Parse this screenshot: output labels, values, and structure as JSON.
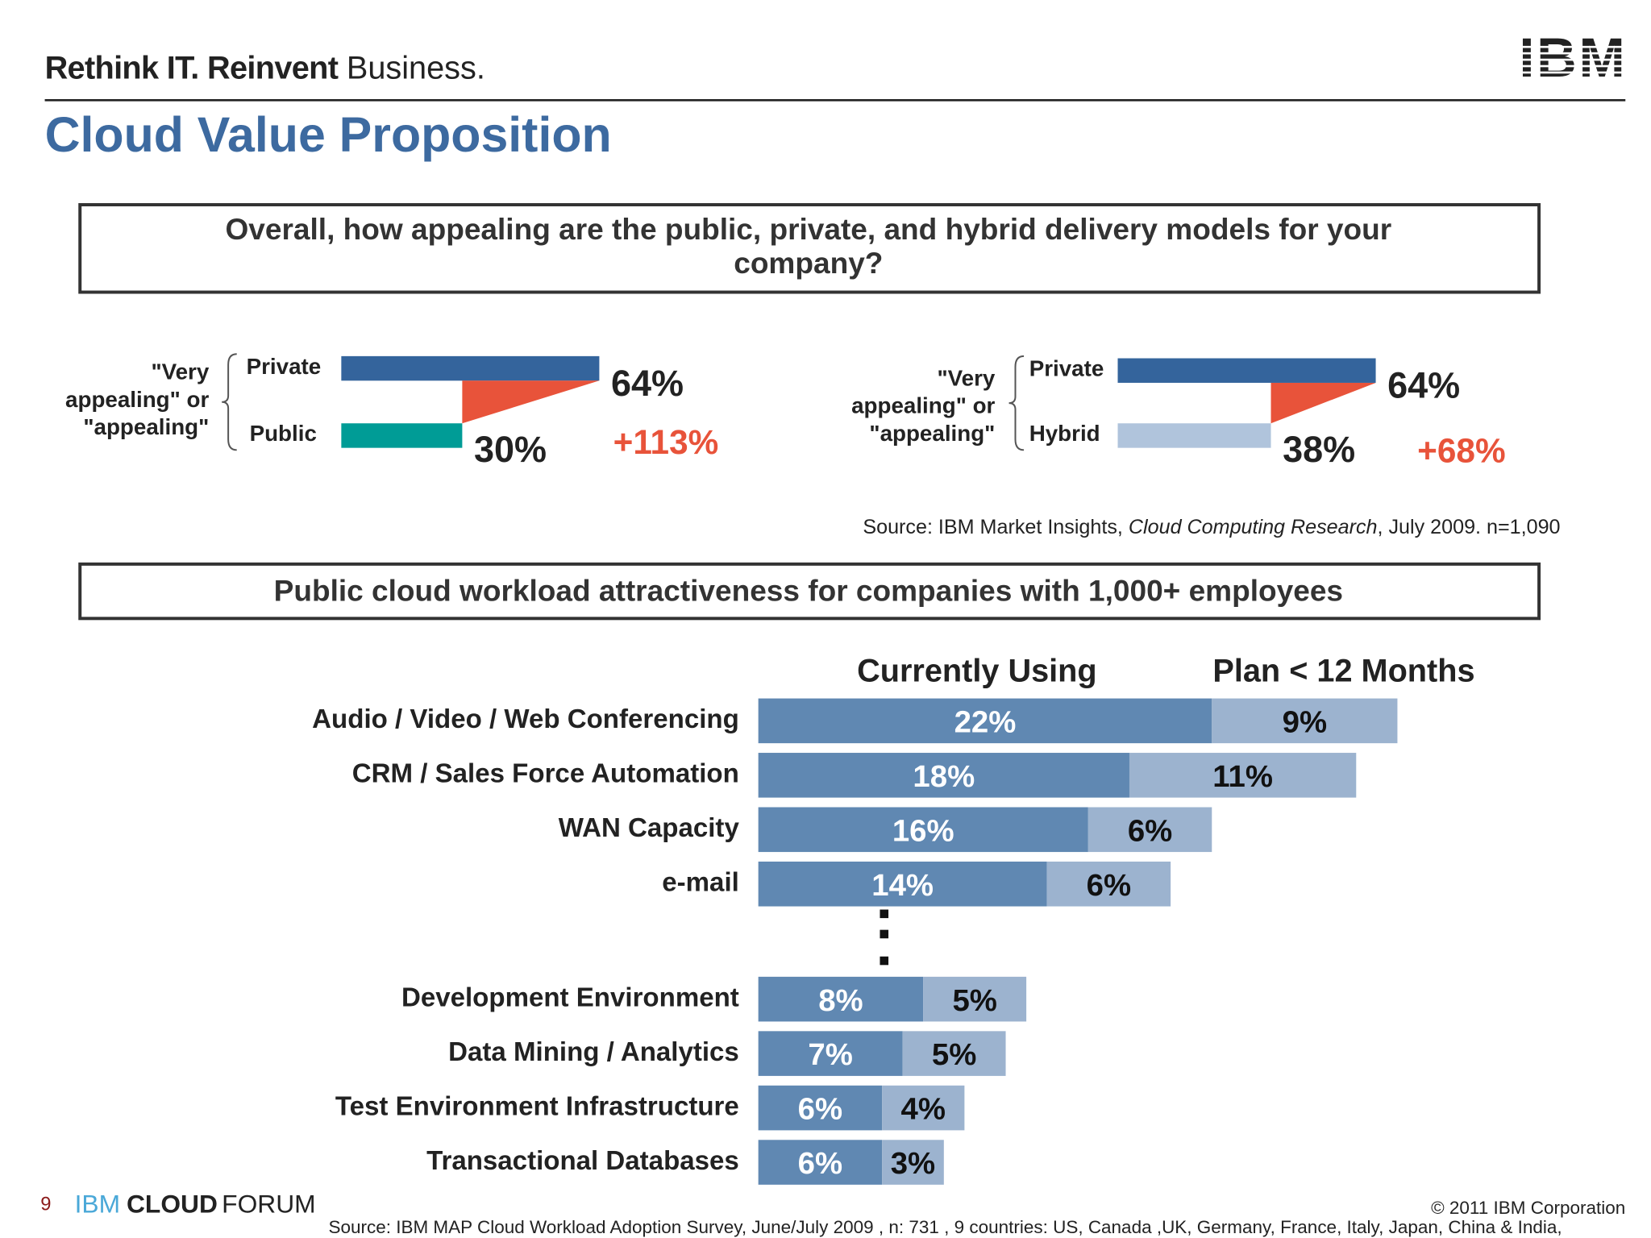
{
  "header": {
    "tagline_bold": "Rethink IT. Reinvent",
    "tagline_light": "Business.",
    "logo": "IBM",
    "title": "Cloud Value Proposition"
  },
  "question": [
    "Overall, how appealing are the public, private, and hybrid delivery models for your",
    "company?"
  ],
  "source_top": [
    "Source: IBM Market Insights, ",
    "Cloud Computing Research",
    ", July 2009. n=1,090"
  ],
  "chart_data": [
    {
      "type": "gap_bar",
      "group_label": [
        "\"Very",
        "appealing\" or",
        "\"appealing\""
      ],
      "categories": [
        "Private",
        "Public"
      ],
      "values": [
        64,
        30
      ],
      "value_labels": [
        "64%",
        "30%"
      ],
      "colors": [
        "#34649c",
        "#009c96"
      ],
      "gap_color": "#e8533a",
      "annotation": "+113%"
    },
    {
      "type": "gap_bar",
      "group_label": [
        "\"Very",
        "appealing\" or",
        "\"appealing\""
      ],
      "categories": [
        "Private",
        "Hybrid"
      ],
      "values": [
        64,
        38
      ],
      "value_labels": [
        "64%",
        "38%"
      ],
      "colors": [
        "#34649c",
        "#b0c4dc"
      ],
      "gap_color": "#e8533a",
      "annotation": "+68%"
    },
    {
      "type": "stacked_hbar",
      "title": "Public cloud workload attractiveness for companies with 1,000+ employees",
      "categories": [
        "Audio / Video / Web Conferencing",
        "CRM / Sales Force Automation",
        "WAN Capacity",
        "e-mail",
        "Development Environment",
        "Data Mining / Analytics",
        "Test Environment Infrastructure",
        "Transactional Databases"
      ],
      "series": [
        {
          "name": "Currently Using",
          "color": "#6088b2",
          "values": [
            22,
            18,
            16,
            14,
            8,
            7,
            6,
            6
          ],
          "value_labels": [
            "22%",
            "18%",
            "16%",
            "14%",
            "8%",
            "7%",
            "6%",
            "6%"
          ]
        },
        {
          "name": "Plan < 12 Months",
          "color": "#9cb3cf",
          "values": [
            9,
            11,
            6,
            6,
            5,
            5,
            4,
            3
          ],
          "value_labels": [
            "9%",
            "11%",
            "6%",
            "6%",
            "5%",
            "5%",
            "4%",
            "3%"
          ]
        }
      ]
    }
  ],
  "footer": {
    "page": "9",
    "brand": [
      "IBM",
      "CLOUD",
      "FORUM"
    ],
    "copyright": "© 2011 IBM Corporation",
    "source": "Source: IBM MAP Cloud Workload Adoption Survey, June/July 2009 , n: 731 , 9 countries: US, Canada ,UK, Germany, France, Italy, Japan, China & India,"
  }
}
